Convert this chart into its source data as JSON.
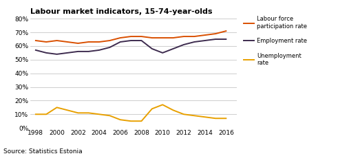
{
  "title": "Labour market indicators, 15-74-year-olds",
  "source": "Source: Statistics Estonia",
  "years": [
    1998,
    1999,
    2000,
    2001,
    2002,
    2003,
    2004,
    2005,
    2006,
    2007,
    2008,
    2009,
    2010,
    2011,
    2012,
    2013,
    2014,
    2015,
    2016
  ],
  "labour_force": [
    64,
    63,
    64,
    63,
    62,
    63,
    63,
    64,
    66,
    67,
    67,
    66,
    66,
    66,
    67,
    67,
    68,
    69,
    71
  ],
  "employment": [
    57,
    55,
    54,
    55,
    56,
    56,
    57,
    59,
    63,
    64,
    64,
    58,
    55,
    58,
    61,
    63,
    64,
    65,
    65
  ],
  "unemployment": [
    10,
    10,
    15,
    13,
    11,
    11,
    10,
    9,
    6,
    5,
    5,
    14,
    17,
    13,
    10,
    9,
    8,
    7,
    7
  ],
  "labour_force_color": "#D94F00",
  "employment_color": "#3D2B4E",
  "unemployment_color": "#E8A000",
  "ylim": [
    0,
    80
  ],
  "yticks": [
    0,
    10,
    20,
    30,
    40,
    50,
    60,
    70,
    80
  ],
  "xticks": [
    1998,
    2000,
    2002,
    2004,
    2006,
    2008,
    2010,
    2012,
    2014,
    2016
  ],
  "xlim": [
    1997.5,
    2017.0
  ],
  "legend_labels": [
    "Labour force\nparticipation rate",
    "Employment rate",
    "Unemployment\nrate"
  ],
  "legend_colors": [
    "#D94F00",
    "#3D2B4E",
    "#E8A000"
  ],
  "background_color": "#ffffff",
  "grid_color": "#bbbbbb"
}
